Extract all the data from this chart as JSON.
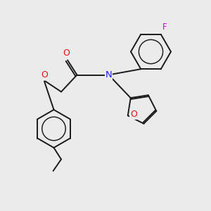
{
  "bg_color": "#ebebeb",
  "bond_color": "#1a1a1a",
  "N_color": "#2020ee",
  "O_color": "#ee1010",
  "F_color": "#cc00cc",
  "bond_width": 1.4,
  "fig_w": 3.0,
  "fig_h": 3.0,
  "dpi": 100,
  "xlim": [
    0,
    10
  ],
  "ylim": [
    0,
    10
  ]
}
